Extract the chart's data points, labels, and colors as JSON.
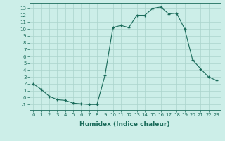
{
  "x": [
    0,
    1,
    2,
    3,
    4,
    5,
    6,
    7,
    8,
    9,
    10,
    11,
    12,
    13,
    14,
    15,
    16,
    17,
    18,
    19,
    20,
    21,
    22,
    23
  ],
  "y": [
    2,
    1.2,
    0.2,
    -0.3,
    -0.4,
    -0.8,
    -0.9,
    -1.0,
    -1.0,
    3.2,
    10.2,
    10.5,
    10.2,
    12.0,
    12.0,
    13.0,
    13.2,
    12.2,
    12.3,
    10.0,
    5.5,
    4.2,
    3.0,
    2.5
  ],
  "line_color": "#1a6b5a",
  "marker": "+",
  "marker_size": 3,
  "bg_color": "#cceee8",
  "grid_color": "#aad4cc",
  "xlabel": "Humidex (Indice chaleur)",
  "xlim": [
    -0.5,
    23.5
  ],
  "ylim": [
    -1.8,
    13.8
  ],
  "yticks": [
    -1,
    0,
    1,
    2,
    3,
    4,
    5,
    6,
    7,
    8,
    9,
    10,
    11,
    12,
    13
  ],
  "xticks": [
    0,
    1,
    2,
    3,
    4,
    5,
    6,
    7,
    8,
    9,
    10,
    11,
    12,
    13,
    14,
    15,
    16,
    17,
    18,
    19,
    20,
    21,
    22,
    23
  ],
  "tick_color": "#1a6b5a",
  "label_color": "#1a6b5a",
  "spine_color": "#1a6b5a",
  "xlabel_fontsize": 6.5,
  "tick_fontsize": 5.0
}
